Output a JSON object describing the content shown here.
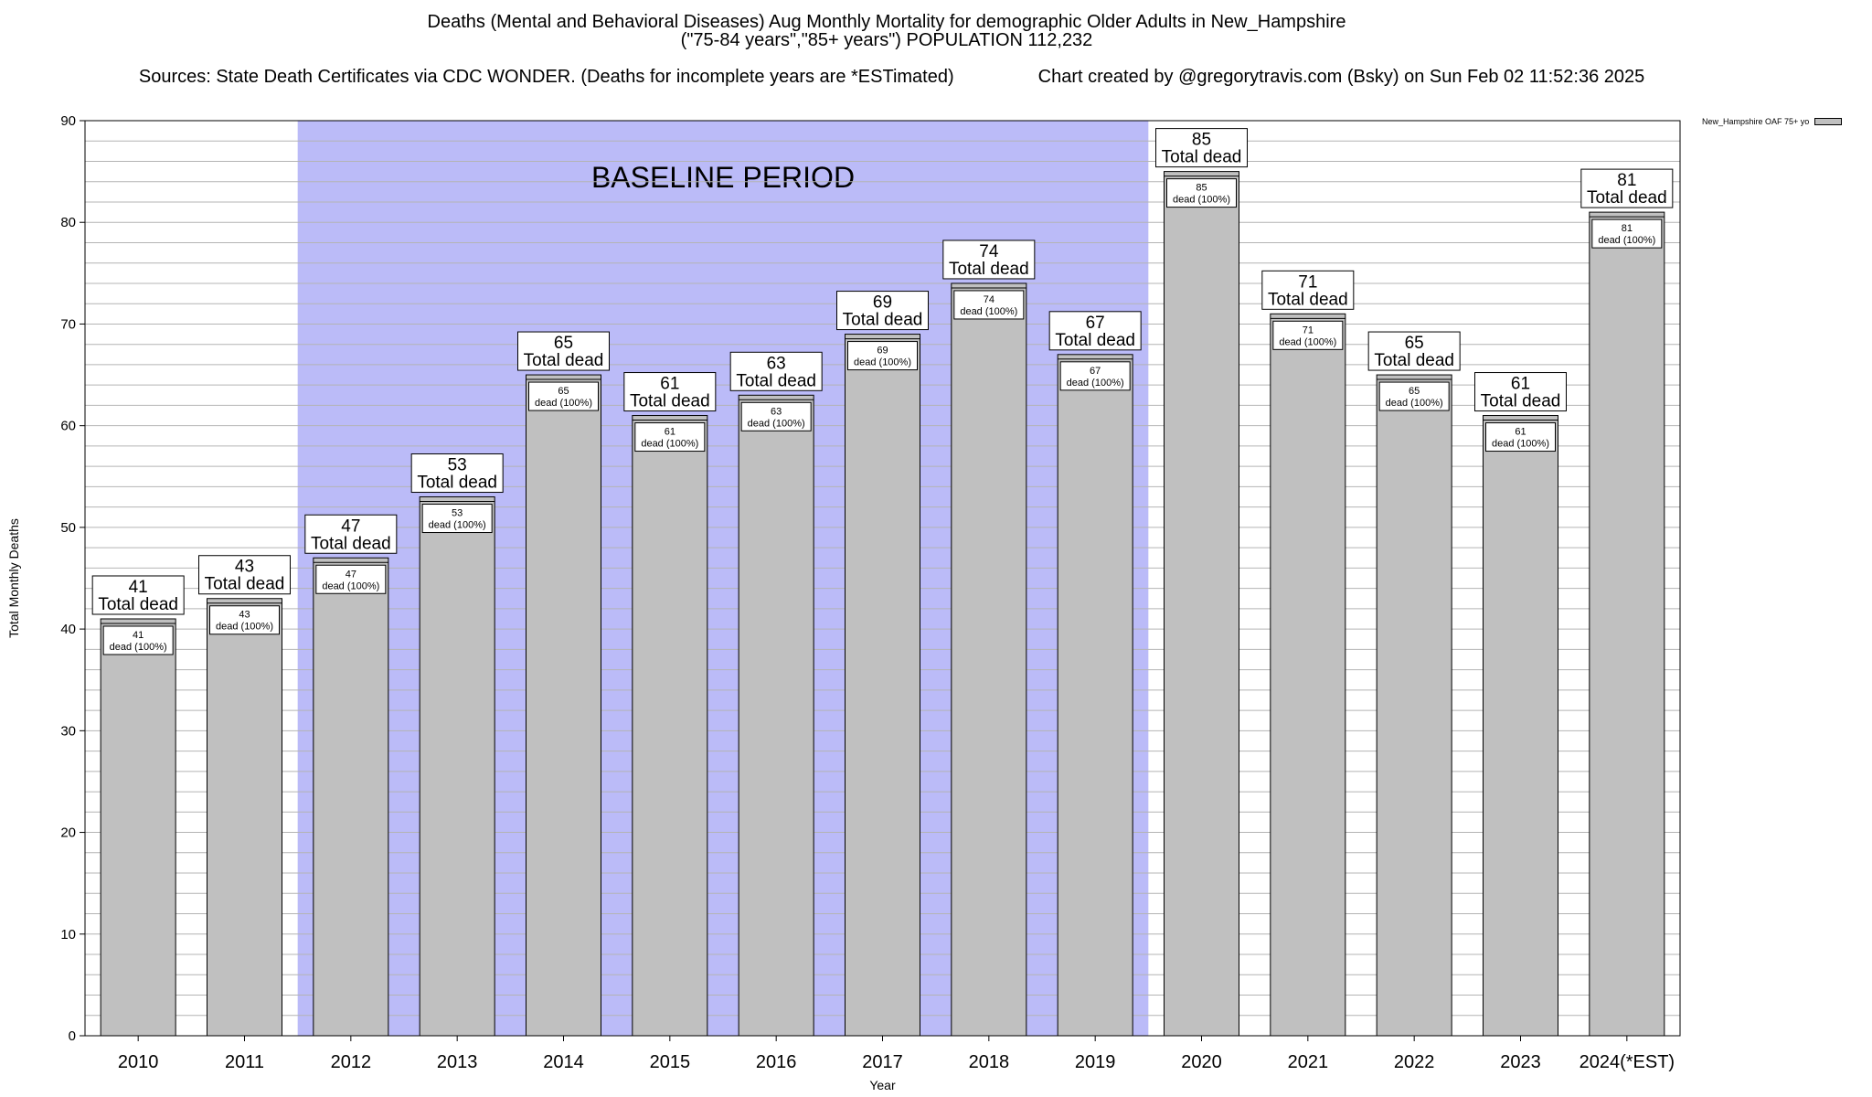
{
  "header": {
    "title": "Deaths (Mental and Behavioral Diseases) Aug Monthly Mortality for demographic Older Adults in New_Hampshire",
    "subtitle": "(\"75-84 years\",\"85+ years\") POPULATION 112,232",
    "sources": "Sources: State Death Certificates via CDC WONDER. (Deaths for incomplete years are *ESTimated)",
    "credit": "Chart created by @gregorytravis.com (Bsky) on Sun Feb 02 11:52:36 2025"
  },
  "legend": {
    "label": "New_Hampshire OAF 75+ yo"
  },
  "chart_data": {
    "type": "bar",
    "title": "Deaths (Mental and Behavioral Diseases) Aug Monthly Mortality for demographic Older Adults in New_Hampshire",
    "xlabel": "Year",
    "ylabel": "Total Monthly Deaths",
    "ylim": [
      0,
      90
    ],
    "yticks": [
      0,
      10,
      20,
      30,
      40,
      50,
      60,
      70,
      80,
      90
    ],
    "grid": true,
    "legend_position": "top-right",
    "categories": [
      "2010",
      "2011",
      "2012",
      "2013",
      "2014",
      "2015",
      "2016",
      "2017",
      "2018",
      "2019",
      "2020",
      "2021",
      "2022",
      "2023",
      "2024(*EST)"
    ],
    "series": [
      {
        "name": "New_Hampshire OAF 75+ yo",
        "values": [
          41,
          43,
          47,
          53,
          65,
          61,
          63,
          69,
          74,
          67,
          85,
          71,
          65,
          61,
          81
        ]
      }
    ],
    "bar_labels": {
      "total_suffix": "Total dead",
      "inner_suffix": "dead (100%)"
    },
    "annotations": [
      {
        "text": "BASELINE PERIOD",
        "span": [
          "2012",
          "2019"
        ]
      }
    ],
    "colors": {
      "bar": "#c0c0c0",
      "baseline": "#bbbbf8",
      "grid": "#b4b4b4"
    }
  }
}
